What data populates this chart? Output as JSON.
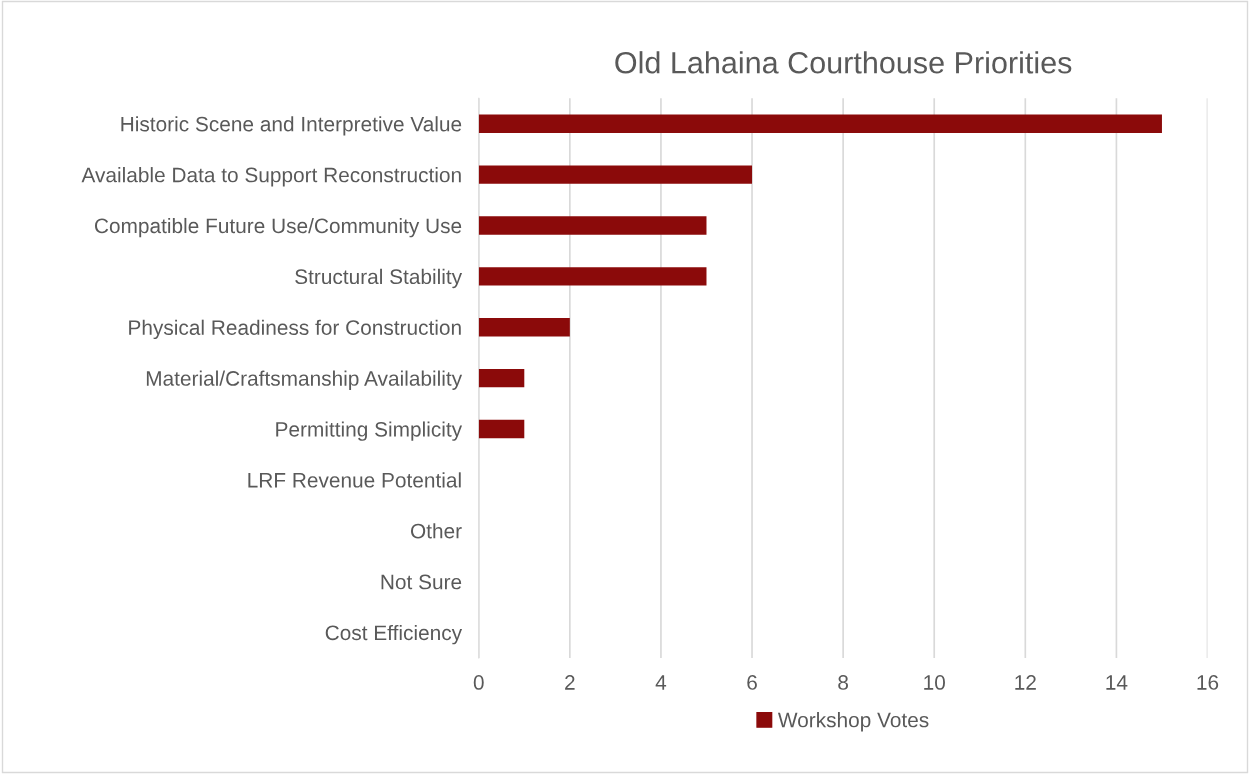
{
  "chart_data": {
    "type": "bar",
    "orientation": "horizontal",
    "title": "Old Lahaina Courthouse Priorities",
    "categories": [
      "Historic Scene and Interpretive Value",
      "Available Data to Support Reconstruction",
      "Compatible Future Use/Community Use",
      "Structural Stability",
      "Physical Readiness for Construction",
      "Material/Craftsmanship Availability",
      "Permitting Simplicity",
      "LRF Revenue Potential",
      "Other",
      "Not Sure",
      "Cost Efficiency"
    ],
    "series": [
      {
        "name": "Workshop Votes",
        "color": "#8b0a0a",
        "values": [
          15,
          6,
          5,
          5,
          2,
          1,
          1,
          0,
          0,
          0,
          0
        ]
      }
    ],
    "xlim": [
      0,
      16
    ],
    "xticks": [
      0,
      2,
      4,
      6,
      8,
      10,
      12,
      14,
      16
    ],
    "grid": "x",
    "legend": "bottom"
  }
}
